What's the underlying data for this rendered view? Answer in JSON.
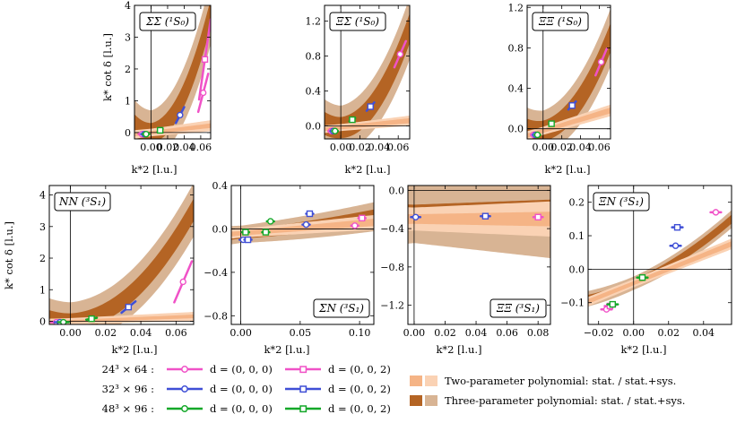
{
  "colors": {
    "magenta": "#f052c7",
    "magenta_light": "#f7a0e2",
    "blue": "#3f4fd6",
    "blue_light": "#5aa0e8",
    "green": "#14a829",
    "green_light": "#2cc83c",
    "band2_stat": "#f5b486",
    "band2_sys": "#fad2b4",
    "band3_stat": "#b46424",
    "band3_sys": "#d8b494"
  },
  "common": {
    "x_axis_label": "k*2 [l.u.]",
    "y_axis_label": "k* cot δ [l.u.]"
  },
  "legend": {
    "rows": [
      {
        "volume": "24³ × 64 :",
        "d1": "d = (0, 0, 0)",
        "d2": "d = (0, 0, 2)",
        "color": "magenta"
      },
      {
        "volume": "32³ × 96 :",
        "d1": "d = (0, 0, 0)",
        "d2": "d = (0, 0, 2)",
        "color": "blue"
      },
      {
        "volume": "48³ × 96 :",
        "d1": "d = (0, 0, 0)",
        "d2": "d = (0, 0, 2)",
        "color": "green"
      }
    ],
    "fits": [
      "Two-parameter polynomial: stat. / stat.+sys.",
      "Three-parameter polynomial: stat. / stat.+sys."
    ]
  },
  "chart_data": [
    {
      "type": "scatter",
      "title": "ΣΣ (¹S₀)",
      "xlim": [
        -0.02,
        0.072
      ],
      "ylim": [
        -0.2,
        4.0
      ],
      "xticks": [
        0.0,
        0.02,
        0.04,
        0.06
      ],
      "xtick_labels": [
        "0.00",
        "0.02",
        "0.04",
        "0.06"
      ],
      "yticks": [
        0,
        1,
        2,
        3,
        4
      ],
      "ytick_labels": [
        "0",
        "1",
        "2",
        "3",
        "4"
      ],
      "xlabel": "k*2 [l.u.]",
      "ylabel": "k* cot δ [l.u.]",
      "fit2": {
        "a": 0.0,
        "b": 3.0,
        "c": 0.0,
        "stat": 0.05,
        "sys": 0.12
      },
      "fit3": {
        "a": 0.0,
        "b": 2.0,
        "c": 700,
        "stat": 0.3,
        "sys": 0.7
      },
      "points": [
        {
          "x": -0.011,
          "y": -0.05,
          "color": "magenta",
          "marker": "circle",
          "slope": 0.0,
          "err": 0.004
        },
        {
          "x": -0.008,
          "y": -0.05,
          "color": "blue",
          "marker": "circle",
          "slope": 0.0,
          "err": 0.004
        },
        {
          "x": -0.006,
          "y": -0.05,
          "color": "green",
          "marker": "circle",
          "slope": 0.0,
          "err": 0.004
        },
        {
          "x": 0.011,
          "y": 0.07,
          "color": "green",
          "marker": "square",
          "slope": 15,
          "err": 0.003
        },
        {
          "x": 0.035,
          "y": 0.55,
          "color": "blue",
          "marker": "circle",
          "slope": 50,
          "err": 0.005
        },
        {
          "x": 0.063,
          "y": 1.25,
          "color": "magenta",
          "marker": "circle",
          "slope": 100,
          "err": 0.006
        },
        {
          "x": 0.065,
          "y": 2.3,
          "color": "magenta",
          "marker": "square",
          "slope": 180,
          "err": 0.007
        }
      ]
    },
    {
      "type": "scatter",
      "title": "ΞΣ (¹S₀)",
      "xlim": [
        -0.017,
        0.072
      ],
      "ylim": [
        -0.15,
        1.38
      ],
      "xticks": [
        0.0,
        0.02,
        0.04,
        0.06
      ],
      "xtick_labels": [
        "0.00",
        "0.02",
        "0.04",
        "0.06"
      ],
      "yticks": [
        0.0,
        0.4,
        0.8,
        1.2
      ],
      "ytick_labels": [
        "0.0",
        "0.4",
        "0.8",
        "1.2"
      ],
      "xlabel": "k*2 [l.u.]",
      "ylabel": "",
      "fit2": {
        "a": -0.02,
        "b": 1.1,
        "c": 0.0,
        "stat": 0.02,
        "sys": 0.04
      },
      "fit3": {
        "a": -0.02,
        "b": 0.7,
        "c": 210,
        "stat": 0.12,
        "sys": 0.25
      },
      "points": [
        {
          "x": -0.01,
          "y": -0.06,
          "color": "magenta",
          "marker": "circle",
          "slope": 0,
          "err": 0.003
        },
        {
          "x": -0.008,
          "y": -0.06,
          "color": "blue",
          "marker": "circle",
          "slope": 0,
          "err": 0.003
        },
        {
          "x": -0.006,
          "y": -0.06,
          "color": "green",
          "marker": "circle",
          "slope": 0,
          "err": 0.003
        },
        {
          "x": 0.012,
          "y": 0.07,
          "color": "green",
          "marker": "square",
          "slope": 6,
          "err": 0.003
        },
        {
          "x": 0.031,
          "y": 0.22,
          "color": "blue",
          "marker": "square",
          "slope": 12,
          "err": 0.004
        },
        {
          "x": 0.062,
          "y": 0.82,
          "color": "magenta",
          "marker": "circle",
          "slope": 25,
          "err": 0.006
        }
      ]
    },
    {
      "type": "scatter",
      "title": "ΞΞ (¹S₀)",
      "xlim": [
        -0.017,
        0.072
      ],
      "ylim": [
        -0.1,
        1.22
      ],
      "xticks": [
        0.0,
        0.02,
        0.04,
        0.06
      ],
      "xtick_labels": [
        "0.00",
        "0.02",
        "0.04",
        "0.06"
      ],
      "yticks": [
        0.0,
        0.4,
        0.8,
        1.2
      ],
      "ytick_labels": [
        "0.0",
        "0.4",
        "0.8",
        "1.2"
      ],
      "xlabel": "k*2 [l.u.]",
      "ylabel": "",
      "fit2": {
        "a": -0.02,
        "b": 2.8,
        "c": 0.0,
        "stat": 0.02,
        "sys": 0.04
      },
      "fit3": {
        "a": -0.02,
        "b": 2.0,
        "c": 150,
        "stat": 0.1,
        "sys": 0.2
      },
      "points": [
        {
          "x": -0.01,
          "y": -0.06,
          "color": "magenta",
          "marker": "circle",
          "slope": 0,
          "err": 0.003
        },
        {
          "x": -0.008,
          "y": -0.06,
          "color": "blue",
          "marker": "circle",
          "slope": 0,
          "err": 0.003
        },
        {
          "x": -0.006,
          "y": -0.06,
          "color": "green",
          "marker": "circle",
          "slope": 0,
          "err": 0.003
        },
        {
          "x": 0.009,
          "y": 0.05,
          "color": "green",
          "marker": "square",
          "slope": 5,
          "err": 0.002
        },
        {
          "x": 0.031,
          "y": 0.23,
          "color": "blue",
          "marker": "square",
          "slope": 10,
          "err": 0.004
        },
        {
          "x": 0.062,
          "y": 0.66,
          "color": "magenta",
          "marker": "circle",
          "slope": 22,
          "err": 0.006
        }
      ]
    },
    {
      "type": "scatter",
      "title": "NN (³S₁)",
      "xlim": [
        -0.012,
        0.07
      ],
      "ylim": [
        -0.1,
        4.3
      ],
      "xticks": [
        0.0,
        0.02,
        0.04,
        0.06
      ],
      "xtick_labels": [
        "0.00",
        "0.02",
        "0.04",
        "0.06"
      ],
      "yticks": [
        0,
        1,
        2,
        3,
        4
      ],
      "ytick_labels": [
        "0",
        "1",
        "2",
        "3",
        "4"
      ],
      "xlabel": "k*2 [l.u.]",
      "ylabel": "k* cot δ [l.u.]",
      "fit2": {
        "a": 0.0,
        "b": 2.2,
        "c": 0.0,
        "stat": 0.04,
        "sys": 0.1
      },
      "fit3": {
        "a": 0.0,
        "b": 1.5,
        "c": 700,
        "stat": 0.25,
        "sys": 0.6
      },
      "points": [
        {
          "x": -0.008,
          "y": -0.03,
          "color": "magenta",
          "marker": "circle",
          "slope": 0,
          "err": 0.003
        },
        {
          "x": -0.006,
          "y": -0.03,
          "color": "blue",
          "marker": "circle",
          "slope": 0,
          "err": 0.003
        },
        {
          "x": -0.004,
          "y": -0.03,
          "color": "green",
          "marker": "circle",
          "slope": 0,
          "err": 0.003
        },
        {
          "x": 0.012,
          "y": 0.08,
          "color": "green",
          "marker": "square",
          "slope": 10,
          "err": 0.003
        },
        {
          "x": 0.033,
          "y": 0.45,
          "color": "blue",
          "marker": "square",
          "slope": 45,
          "err": 0.004
        },
        {
          "x": 0.064,
          "y": 1.25,
          "color": "magenta",
          "marker": "circle",
          "slope": 130,
          "err": 0.005
        }
      ]
    },
    {
      "type": "scatter",
      "title": "ΣN (³S₁)",
      "xlim": [
        -0.008,
        0.112
      ],
      "ylim": [
        -0.88,
        0.4
      ],
      "xticks": [
        0.0,
        0.05,
        0.1
      ],
      "xtick_labels": [
        "0.00",
        "0.05",
        "0.10"
      ],
      "yticks": [
        -0.8,
        -0.4,
        0.0,
        0.4
      ],
      "ytick_labels": [
        "−0.8",
        "−0.4",
        "0.0",
        "0.4"
      ],
      "xlabel": "k*2 [l.u.]",
      "ylabel": "",
      "fit2": {
        "a": -0.04,
        "b": 0.9,
        "c": 0.0,
        "stat": 0.02,
        "sys": 0.04
      },
      "fit3": {
        "a": -0.05,
        "b": 1.0,
        "c": 4,
        "stat": 0.04,
        "sys": 0.08
      },
      "points": [
        {
          "x": 0.002,
          "y": -0.1,
          "color": "blue",
          "marker": "circle",
          "slope": 0,
          "err": 0.003
        },
        {
          "x": 0.004,
          "y": -0.03,
          "color": "green",
          "marker": "square",
          "slope": 0,
          "err": 0.003
        },
        {
          "x": 0.006,
          "y": -0.1,
          "color": "blue",
          "marker": "square",
          "slope": 0,
          "err": 0.003
        },
        {
          "x": 0.021,
          "y": -0.03,
          "color": "green",
          "marker": "square",
          "slope": 0,
          "err": 0.003
        },
        {
          "x": 0.025,
          "y": 0.07,
          "color": "green",
          "marker": "circle",
          "slope": 0,
          "err": 0.003
        },
        {
          "x": 0.055,
          "y": 0.04,
          "color": "blue",
          "marker": "circle",
          "slope": 0,
          "err": 0.003
        },
        {
          "x": 0.058,
          "y": 0.14,
          "color": "blue",
          "marker": "square",
          "slope": 0,
          "err": 0.003
        },
        {
          "x": 0.096,
          "y": 0.03,
          "color": "magenta",
          "marker": "circle",
          "slope": 0,
          "err": 0.003
        },
        {
          "x": 0.102,
          "y": 0.1,
          "color": "magenta",
          "marker": "square",
          "slope": 0,
          "err": 0.003
        }
      ]
    },
    {
      "type": "scatter",
      "title": "ΞΞ (³S₁)",
      "xlim": [
        -0.004,
        0.088
      ],
      "ylim": [
        -1.4,
        0.05
      ],
      "xticks": [
        0.0,
        0.02,
        0.04,
        0.06,
        0.08
      ],
      "xtick_labels": [
        "0.00",
        "0.02",
        "0.04",
        "0.06",
        "0.08"
      ],
      "yticks": [
        -1.2,
        -0.8,
        -0.4,
        0.0
      ],
      "ytick_labels": [
        "−1.2",
        "−0.8",
        "−0.4",
        "0.0"
      ],
      "xlabel": "k*2 [l.u.]",
      "ylabel": "",
      "fit2": {
        "a": -0.3,
        "b": 0.0,
        "c": 0.0,
        "stat": 0.05,
        "sys": 0.12
      },
      "fit3": {
        "a": -0.25,
        "b": 0.0,
        "c": 0.0,
        "stat": 0.1,
        "sys": 0.3
      },
      "points": [
        {
          "x": 0.001,
          "y": -0.28,
          "color": "blue",
          "marker": "circle",
          "slope": 0,
          "err": 0.003
        },
        {
          "x": 0.046,
          "y": -0.27,
          "color": "blue",
          "marker": "square",
          "slope": 0,
          "err": 0.003
        },
        {
          "x": 0.08,
          "y": -0.28,
          "color": "magenta",
          "marker": "square",
          "slope": 0,
          "err": 0.003
        }
      ]
    },
    {
      "type": "scatter",
      "title": "ΞN (³S₁)",
      "xlim": [
        -0.026,
        0.056
      ],
      "ylim": [
        -0.165,
        0.25
      ],
      "xticks": [
        -0.02,
        0.0,
        0.02,
        0.04
      ],
      "xtick_labels": [
        "−0.02",
        "0.00",
        "0.02",
        "0.04"
      ],
      "yticks": [
        -0.1,
        0.0,
        0.1,
        0.2
      ],
      "ytick_labels": [
        "−0.1",
        "0.0",
        "0.1",
        "0.2"
      ],
      "xlabel": "k*2 [l.u.]",
      "ylabel": "",
      "fit2": {
        "a": -0.042,
        "b": 2.1,
        "c": 0.0,
        "stat": 0.006,
        "sys": 0.012
      },
      "fit3": {
        "a": -0.042,
        "b": 2.3,
        "c": 20,
        "stat": 0.01,
        "sys": 0.02
      },
      "points": [
        {
          "x": -0.0155,
          "y": -0.12,
          "color": "magenta",
          "marker": "circle",
          "slope": 0,
          "err": 0.003
        },
        {
          "x": -0.0135,
          "y": -0.11,
          "color": "magenta",
          "marker": "square",
          "slope": 0,
          "err": 0.003
        },
        {
          "x": -0.012,
          "y": -0.105,
          "color": "green",
          "marker": "square",
          "slope": 0,
          "err": 0.003
        },
        {
          "x": 0.005,
          "y": -0.025,
          "color": "green",
          "marker": "square",
          "slope": 0,
          "err": 0.003
        },
        {
          "x": 0.024,
          "y": 0.07,
          "color": "blue",
          "marker": "circle",
          "slope": 0,
          "err": 0.003
        },
        {
          "x": 0.025,
          "y": 0.125,
          "color": "blue",
          "marker": "square",
          "slope": 0,
          "err": 0.003
        },
        {
          "x": 0.047,
          "y": 0.17,
          "color": "magenta",
          "marker": "circle",
          "slope": 0,
          "err": 0.003
        }
      ]
    }
  ]
}
